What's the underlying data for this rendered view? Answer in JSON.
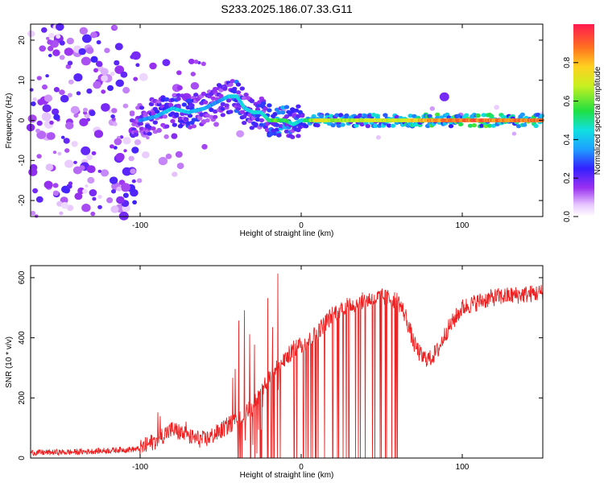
{
  "title": "S233.2025.186.07.33.G11",
  "chart_data": [
    {
      "type": "heatmap",
      "xlabel": "Height of straight line (km)",
      "ylabel": "Frequency (Hz)",
      "xlim": [
        -168,
        150
      ],
      "ylim": [
        -24,
        24
      ],
      "x_ticks": [
        -100,
        0,
        100
      ],
      "y_ticks": [
        -20,
        -10,
        0,
        10,
        20
      ],
      "colorbar": {
        "label": "Normalized spectral amplitude",
        "range": [
          0,
          1
        ],
        "ticks": [
          "0.0",
          "0.2",
          "0.4",
          "0.6",
          "0.8"
        ],
        "colormap": "white-purple-blue-cyan-green-yellow-red"
      },
      "ridge": {
        "x": [
          -100,
          -90,
          -80,
          -70,
          -60,
          -50,
          -45,
          -40,
          -35,
          -30,
          -25,
          -20,
          -15,
          -10,
          -5,
          0,
          10,
          20,
          40,
          60,
          80,
          100,
          120,
          150
        ],
        "y": [
          0,
          1,
          3,
          2,
          3,
          5,
          6,
          6,
          3,
          2,
          2,
          0,
          0,
          0,
          -1,
          0,
          0,
          0,
          0,
          0,
          0,
          0,
          0,
          0
        ],
        "amplitude": [
          0.35,
          0.4,
          0.45,
          0.45,
          0.4,
          0.35,
          0.45,
          0.5,
          0.45,
          0.5,
          0.45,
          0.55,
          0.65,
          0.6,
          0.5,
          0.45,
          0.8,
          0.7,
          0.75,
          0.75,
          0.9,
          0.95,
          0.95,
          0.95
        ]
      }
    },
    {
      "type": "line",
      "xlabel": "Height of straight line (km)",
      "ylabel": "SNR (10 * v/v)",
      "xlim": [
        -168,
        150
      ],
      "ylim": [
        0,
        640
      ],
      "x_ticks": [
        -100,
        0,
        100
      ],
      "y_ticks": [
        0,
        200,
        400,
        600
      ],
      "series": [
        {
          "color": "#ee2222",
          "x": [
            -168,
            -140,
            -120,
            -110,
            -100,
            -95,
            -90,
            -85,
            -80,
            -75,
            -70,
            -65,
            -60,
            -55,
            -50,
            -45,
            -40,
            -35,
            -30,
            -25,
            -20,
            -15,
            -10,
            -5,
            0,
            5,
            10,
            15,
            20,
            25,
            30,
            35,
            40,
            45,
            50,
            55,
            60,
            65,
            70,
            75,
            80,
            85,
            90,
            95,
            100,
            110,
            120,
            130,
            140,
            150
          ],
          "values": [
            18,
            20,
            25,
            28,
            30,
            45,
            60,
            80,
            95,
            85,
            70,
            65,
            60,
            75,
            90,
            110,
            130,
            150,
            170,
            220,
            260,
            300,
            330,
            360,
            380,
            390,
            420,
            450,
            480,
            500,
            510,
            515,
            525,
            530,
            535,
            530,
            525,
            470,
            380,
            335,
            330,
            360,
            420,
            460,
            500,
            520,
            535,
            540,
            545,
            550
          ],
          "dropouts_x_range": [
            -40,
            60
          ]
        }
      ]
    }
  ]
}
